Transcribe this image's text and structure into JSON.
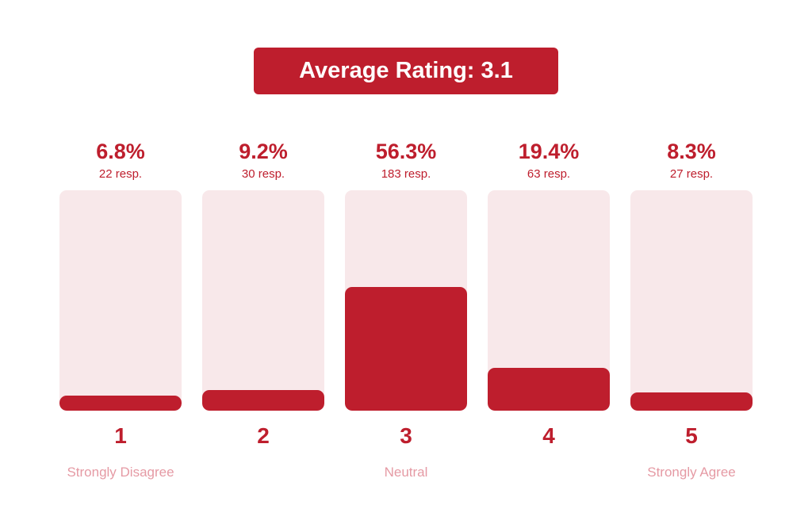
{
  "title": "Average Rating: 3.1",
  "colors": {
    "accent": "#be1e2d",
    "track": "#f8e8ea",
    "label": "#e59aa4"
  },
  "chart_data": {
    "type": "bar",
    "categories": [
      "1",
      "2",
      "3",
      "4",
      "5"
    ],
    "values": [
      6.8,
      9.2,
      56.3,
      19.4,
      8.3
    ],
    "ylim": [
      0,
      100
    ],
    "value_labels": [
      "6.8%",
      "9.2%",
      "56.3%",
      "19.4%",
      "8.3%"
    ],
    "responses": [
      "22 resp.",
      "30 resp.",
      "183 resp.",
      "63 resp.",
      "27 resp."
    ],
    "scale_labels": [
      "Strongly Disagree",
      "",
      "Neutral",
      "",
      "Strongly Agree"
    ]
  }
}
